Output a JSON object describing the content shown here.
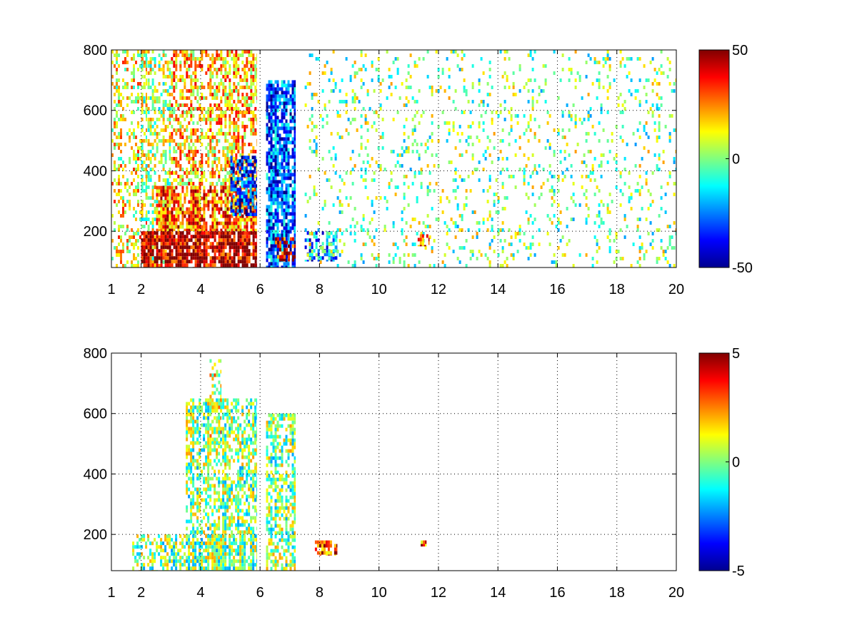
{
  "chart_data": [
    {
      "type": "heatmap",
      "x_ticks": [
        "1",
        "2",
        "4",
        "6",
        "8",
        "10",
        "12",
        "14",
        "16",
        "18",
        "20"
      ],
      "x_tick_values": [
        1,
        2,
        4,
        6,
        8,
        10,
        12,
        14,
        16,
        18,
        20
      ],
      "y_ticks": [
        "200",
        "400",
        "600",
        "800"
      ],
      "y_tick_values": [
        200,
        400,
        600,
        800
      ],
      "xlim": [
        1,
        20
      ],
      "ylim": [
        80,
        800
      ],
      "grid": true,
      "colormap": "jet",
      "colorbar": {
        "min": -50,
        "max": 50,
        "labels": [
          "50",
          "0",
          "-50"
        ],
        "label_values": [
          50,
          0,
          -50
        ]
      },
      "regions": [
        {
          "x_range": [
            1.0,
            2.2
          ],
          "y_range": [
            80,
            800
          ],
          "value": 12,
          "density": 0.35
        },
        {
          "x_range": [
            2.0,
            3.0
          ],
          "y_range": [
            80,
            800
          ],
          "value": 5,
          "density": 0.45
        },
        {
          "x_range": [
            3.0,
            5.9
          ],
          "y_range": [
            350,
            800
          ],
          "value": 18,
          "density": 0.55
        },
        {
          "x_range": [
            2.5,
            5.9
          ],
          "y_range": [
            200,
            350
          ],
          "value": 28,
          "density": 0.8
        },
        {
          "x_range": [
            2.0,
            5.9
          ],
          "y_range": [
            80,
            200
          ],
          "value": 45,
          "density": 0.9
        },
        {
          "x_range": [
            5.0,
            5.9
          ],
          "y_range": [
            250,
            450
          ],
          "value": -35,
          "density": 0.6
        },
        {
          "x_range": [
            6.2,
            7.2
          ],
          "y_range": [
            80,
            700
          ],
          "value": -30,
          "density": 0.75
        },
        {
          "x_range": [
            6.5,
            7.2
          ],
          "y_range": [
            100,
            180
          ],
          "value": 40,
          "density": 0.5
        },
        {
          "x_range": [
            7.5,
            8.6
          ],
          "y_range": [
            100,
            200
          ],
          "value": -25,
          "density": 0.6
        },
        {
          "x_range": [
            7.5,
            20.0
          ],
          "y_range": [
            80,
            800
          ],
          "value": 0,
          "density": 0.12
        },
        {
          "x_range": [
            11.3,
            11.7
          ],
          "y_range": [
            150,
            190
          ],
          "value": 30,
          "density": 0.9
        }
      ]
    },
    {
      "type": "heatmap",
      "x_ticks": [
        "1",
        "2",
        "4",
        "6",
        "8",
        "10",
        "12",
        "14",
        "16",
        "18",
        "20"
      ],
      "x_tick_values": [
        1,
        2,
        4,
        6,
        8,
        10,
        12,
        14,
        16,
        18,
        20
      ],
      "y_ticks": [
        "200",
        "400",
        "600",
        "800"
      ],
      "y_tick_values": [
        200,
        400,
        600,
        800
      ],
      "xlim": [
        1,
        20
      ],
      "ylim": [
        80,
        800
      ],
      "grid": true,
      "colormap": "jet",
      "colorbar": {
        "min": -5,
        "max": 5,
        "labels": [
          "5",
          "0",
          "-5"
        ],
        "label_values": [
          5,
          0,
          -5
        ]
      },
      "regions": [
        {
          "x_range": [
            1.7,
            3.5
          ],
          "y_range": [
            80,
            200
          ],
          "value": 0,
          "density": 0.5
        },
        {
          "x_range": [
            3.5,
            5.9
          ],
          "y_range": [
            80,
            200
          ],
          "value": 0,
          "density": 0.85
        },
        {
          "x_range": [
            3.5,
            5.9
          ],
          "y_range": [
            200,
            650
          ],
          "value": 0,
          "density": 0.6
        },
        {
          "x_range": [
            4.3,
            4.7
          ],
          "y_range": [
            500,
            780
          ],
          "value": 1,
          "density": 0.4
        },
        {
          "x_range": [
            6.2,
            7.2
          ],
          "y_range": [
            80,
            600
          ],
          "value": 0,
          "density": 0.55
        },
        {
          "x_range": [
            7.7,
            8.6
          ],
          "y_range": [
            130,
            180
          ],
          "value": 3,
          "density": 0.6
        },
        {
          "x_range": [
            11.4,
            11.6
          ],
          "y_range": [
            160,
            180
          ],
          "value": 3,
          "density": 1.0
        }
      ]
    }
  ]
}
